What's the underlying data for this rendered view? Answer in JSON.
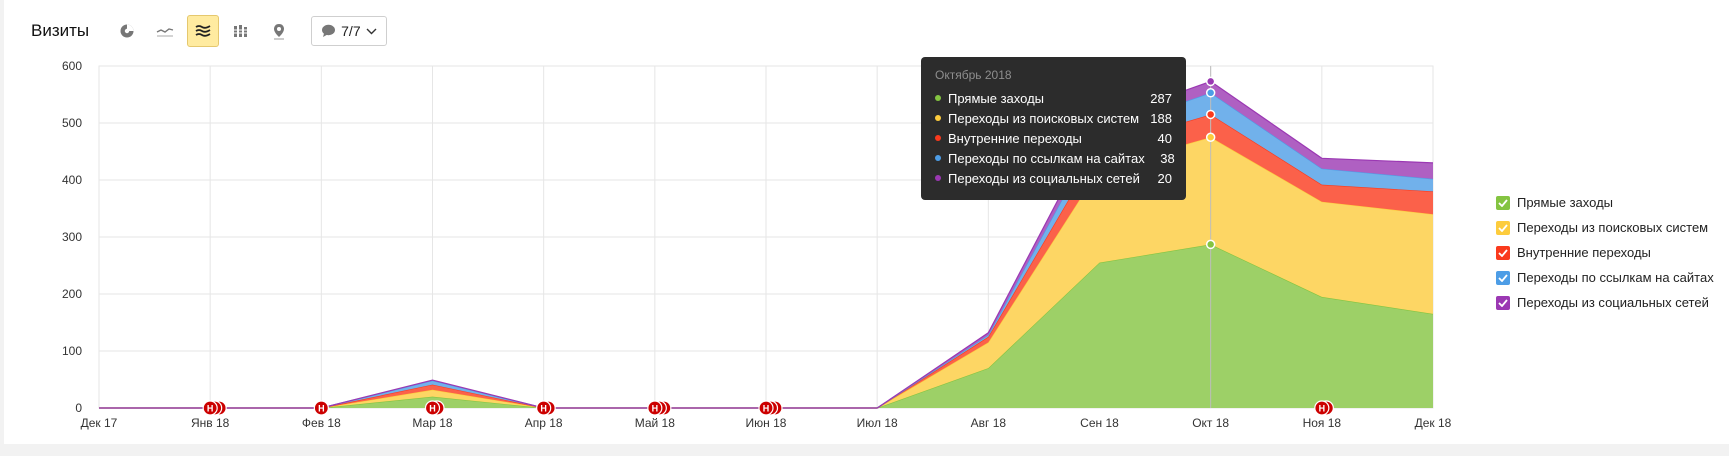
{
  "header": {
    "title": "Визиты",
    "tools": [
      {
        "name": "pie-chart-icon",
        "active": false
      },
      {
        "name": "line-chart-icon",
        "active": false
      },
      {
        "name": "stacked-area-icon",
        "active": true
      },
      {
        "name": "bar-chart-icon",
        "active": false
      },
      {
        "name": "map-icon",
        "active": false
      }
    ],
    "notes_label": "7/7"
  },
  "chart_data": {
    "type": "area",
    "stacked": true,
    "categories": [
      "Дек 17",
      "Янв 18",
      "Фев 18",
      "Мар 18",
      "Апр 18",
      "Май 18",
      "Июн 18",
      "Июл 18",
      "Авг 18",
      "Сен 18",
      "Окт 18",
      "Ноя 18",
      "Дек 18"
    ],
    "y_ticks": [
      "0",
      "100",
      "200",
      "300",
      "400",
      "500",
      "600"
    ],
    "ylim": [
      0,
      600
    ],
    "grid": true,
    "legend_position": "right",
    "series": [
      {
        "name": "Прямые заходы",
        "color": "#84c441",
        "values": [
          0,
          0,
          0,
          20,
          0,
          0,
          0,
          0,
          70,
          255,
          287,
          195,
          165
        ]
      },
      {
        "name": "Переходы из поисковых систем",
        "color": "#fdcc3d",
        "values": [
          0,
          0,
          0,
          12,
          0,
          0,
          0,
          0,
          45,
          165,
          188,
          167,
          175
        ]
      },
      {
        "name": "Внутренние переходы",
        "color": "#fa3a1d",
        "values": [
          0,
          0,
          0,
          9,
          0,
          0,
          0,
          0,
          10,
          38,
          40,
          30,
          40
        ]
      },
      {
        "name": "Переходы по ссылкам на сайтах",
        "color": "#4d9de6",
        "values": [
          0,
          0,
          0,
          7,
          0,
          0,
          0,
          0,
          3,
          28,
          38,
          28,
          22
        ]
      },
      {
        "name": "Переходы из социальных сетей",
        "color": "#9b38b3",
        "values": [
          0,
          0,
          0,
          1,
          0,
          0,
          0,
          0,
          4,
          18,
          20,
          18,
          28
        ]
      }
    ],
    "markers": [
      {
        "category": "Янв 18",
        "count": 3
      },
      {
        "category": "Фев 18",
        "count": 1
      },
      {
        "category": "Мар 18",
        "count": 2
      },
      {
        "category": "Апр 18",
        "count": 2
      },
      {
        "category": "Май 18",
        "count": 3
      },
      {
        "category": "Июн 18",
        "count": 3
      },
      {
        "category": "Ноя 18",
        "count": 2
      }
    ],
    "marker_label": "Н",
    "hover_category": "Окт 18"
  },
  "tooltip": {
    "title": "Октябрь 2018",
    "rows": [
      {
        "label": "Прямые заходы",
        "value": "287",
        "color": "#84c441"
      },
      {
        "label": "Переходы из поисковых систем",
        "value": "188",
        "color": "#fdcc3d"
      },
      {
        "label": "Внутренние переходы",
        "value": "40",
        "color": "#fa3a1d"
      },
      {
        "label": "Переходы по ссылкам на сайтах",
        "value": "38",
        "color": "#4d9de6"
      },
      {
        "label": "Переходы из социальных сетей",
        "value": "20",
        "color": "#9b38b3"
      }
    ]
  },
  "legend": [
    {
      "label": "Прямые заходы",
      "color": "#84c441"
    },
    {
      "label": "Переходы из поисковых систем",
      "color": "#fdcc3d"
    },
    {
      "label": "Внутренние переходы",
      "color": "#fa3a1d"
    },
    {
      "label": "Переходы по ссылкам на сайтах",
      "color": "#4d9de6"
    },
    {
      "label": "Переходы из социальных сетей",
      "color": "#9b38b3"
    }
  ]
}
